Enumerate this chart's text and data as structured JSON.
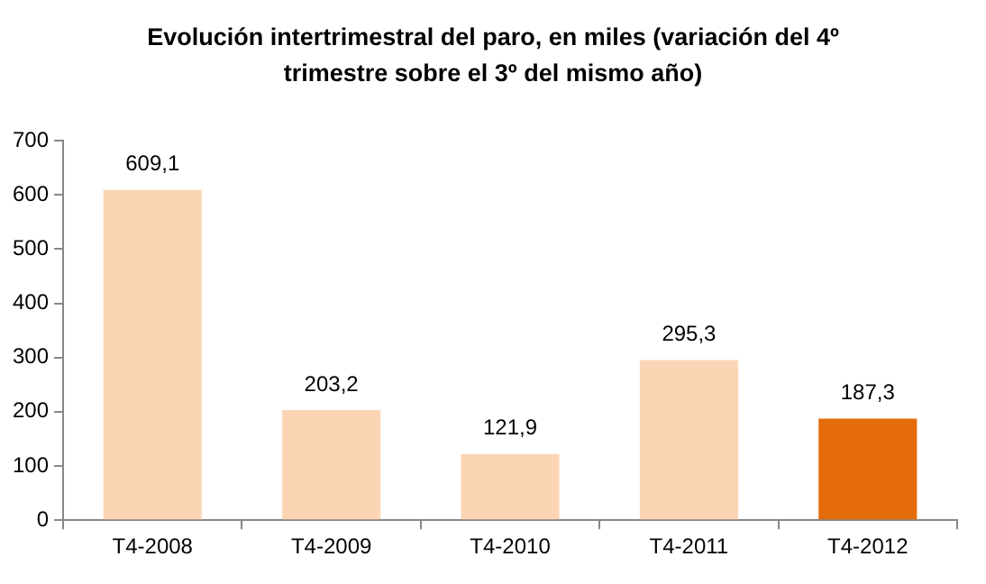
{
  "chart_data": {
    "type": "bar",
    "title": "Evolución intertrimestral del paro, en miles (variación del 4º trimestre sobre el 3º del mismo año)",
    "categories": [
      "T4-2008",
      "T4-2009",
      "T4-2010",
      "T4-2011",
      "T4-2012"
    ],
    "values": [
      609.1,
      203.2,
      121.9,
      295.3,
      187.3
    ],
    "colors": [
      "#fcd5b4",
      "#fcd5b4",
      "#fcd5b4",
      "#fcd5b4",
      "#e46c0a"
    ],
    "value_labels": [
      "609,1",
      "203,2",
      "121,9",
      "295,3",
      "187,3"
    ],
    "ylim": [
      0,
      700
    ],
    "yticks": [
      0,
      100,
      200,
      300,
      400,
      500,
      600,
      700
    ],
    "grid": false,
    "legend": false
  }
}
